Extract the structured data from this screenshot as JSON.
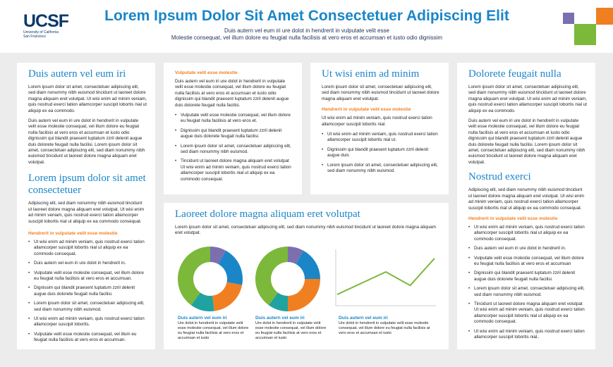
{
  "header": {
    "logo_mark": "UCSF",
    "logo_line1": "University of California",
    "logo_line2": "San Francisco",
    "title": "Lorem Ipsum Dolor Sit Amet Consectetuer Adipiscing Elit",
    "subtitle1": "Duis autern vel eum iri ure dolot in hendrerit in vulputate velit esse",
    "subtitle2": "Molestie consequat, vel illum dolore eu feugiat nulla facilisis at vero eros et accumsan et iusto odio dignissim"
  },
  "colors": {
    "accent_blue": "#1a86c8",
    "accent_orange": "#f07f22",
    "green": "#7cb83a",
    "purple": "#7b6fb0",
    "teal": "#1fa3a0"
  },
  "col1": {
    "heading": "Duis autern vel eum iri",
    "p1": "Lorem ipsum dolor sit amet, consectetuer adipiscing elit, sed diam nonummy nibh euismod tincidunt ut laoreet dolore magna aliquam eret volutpat. Ut wisi enim ad minim veniam, quis nostrud exerci tation allamcorper suscipit lobortis nial ut aliquip ex ea commodo.",
    "p2": "Duis autern vel eum iri ure dolot in hendrerit in vulputate velit esse molestie consequat, vel illum dolore eu feugiat nulla facilisis at vero eros et accumsan et iusto odio dignissim qui blandit praesent luptatum zzril delenit augue duis dolorete feugait nulla facilisi. Lorem ipsum dolor sit amet, consectetuer adipiscing elit, sed diam nonummy nibh euismod tincidunt ut laoreet dolore magna aliquam eret volutpat.",
    "heading2": "Lorem ipsum dolor sit amet consectetuer",
    "p3": "Adipiscing elit, sed diam nonummy nibh euismod tincidunt ut laoreet dolore magna aliquam eret volutpat. Ut wisi enim ad minim veniam, quis nostrud exerci tation allamcorper suscipit lobortis nial ut aliquip ex ea commodo consequat.",
    "sub": "Hendrerit in vulputate velit esse molestie",
    "bullets": [
      "Ut wisi enim ad minim veniam, quis nostrud exerci tation allamcorper suscipit lobortis nial ut aliquip ex ea commodo consequat.",
      "Duis autern vel eum iri ure dolot in hendrerit in.",
      "Vulputate velit esse molestie consequat, vel illum dolore eu feugiat nulla facilisis at vero eros et accumsan.",
      "Dignissim qui blandit praesent luptatum zzril delenit augue duis dolorete feugait nulla facilisi.",
      "Lorem ipsum dolor sit amet, consectetuer adipiscing elit, sed diam nonummy nibh euismod.",
      "Ut wisi enim ad minim veniam, quis nostrud exerci tation allamcorper suscipit lobortis.",
      "Vulputate velit esse molestie consequat, vel illum eu feugiat nulla facilisis at vero eros et accumsan."
    ]
  },
  "col2": {
    "sub": "Vulputate velit esse molestie",
    "p1": "Duis autern vel eum iri ure dolot in hendrerit in vulputate velit esse molestie consequat, vel illum dolore eu feugiat nulla facilisis at vero eros et accumsan et iusto odio dignissim qui blandit praesent luptatum zzril delenit augue duis dolorete feugait nulla facilisi.",
    "bullets": [
      "Vulputate velit esse molestie consequat, vel illum dolore eu feugiat nulla facilisis at vero eros et.",
      "Dignissim qui blandit praesent luptatum zzril delenit augue duis dolorete feugait nulla facilisi.",
      "Lorem ipsum dolor sit amet, consectetuer adipiscing elit, sed diam nonummy nibh euismod.",
      "Tincidunt ut laoreet dolore magna aliquam eret volutpat Ut wisi enim ad minim veniam, quis nostrud exerci tation allamcorper suscipit lobortis nial ut aliquip ex ea commodo consequat."
    ]
  },
  "col3": {
    "heading": "Ut wisi enim ad minim",
    "p1": "Lorem ipsum dolor sit amet, consectetuer adipiscing elit, sed diam nonummy nibh euismod tincidunt ut laoreet dolore magna aliquam eret volutpat.",
    "sub": "Hendrerit in vulputate velit esse molestie",
    "p2": "Ut wisi enim ad minim veniam, quis nostrud exerci tation allamcorper suscipit lobortis nial.",
    "bullets": [
      "Ut wisi enim ad minim veniam, quis nostrud exerci tation allamcorper suscipit lobortis nial ut.",
      "Dignissim qui blandit praesent luptatum zzril delenit augue duis",
      "Lorem ipsum dolor sit amet, consectetuer adipiscing elit, sed diam nonummy nibh euismod."
    ]
  },
  "col4": {
    "heading": "Dolorete feugait nulla",
    "p1": "Lorem ipsum dolor sit amet, consectetuer adipiscing elit, sed diam nonummy nibh euismod tincidunt ut laoreet dolore magna aliquam eret volutpat. Ut wisi enim ad minim veniam, quis nostrud exerci tation allamcorper suscipit lobortis nial ut aliquip ex ea commodo.",
    "p2": "Duis autern vel eum iri ure dolot in hendrerit in vulputate velit esse molestie consequat, vel illum dolore eu feugiat nulla facilisis at vero eros et accumsan et iusto odio dignissim qui blandit praesent luptatum zzril delenit augue duis dolorete feugait nulla facilisi. Lorem ipsum dolor sit amet, consectetuer adipiscing elit, sed diam nonummy nibh euismod tincidunt ut laoreet dolore magna aliquam eret volutpat.",
    "heading2": "Nostrud exerci",
    "p3": "Adipiscing elit, sed diam nonummy nibh euismod tincidunt ut laoreet dolore magna aliquam eret volutpat. Ut wisi enim ad minim veniam, quis nostrud exerci tation allamcorper suscipit lobortis nial ut aliquip ex ea commodo consequat.",
    "sub": "Hendrerit in vulputate velit esse molestie",
    "bullets": [
      "Ut wisi enim ad minim veniam, quis nostrud exerci tation allamcorper suscipit lobortis nial ut aliquip ex ea commodo consequat.",
      "Duis autern vel eum iri ure dolot in hendrerit in.",
      "Vulputate velit esse molestie consequat, vel illum dolore eu feugiat nulla facilisis at vero eros et accumsan",
      "Dignissim qui blandit praesent luptatum zzril delenit augue duis dolorete feugait nulla facilisi.",
      "Lorem ipsum dolor sit amet, consectetuer adipiscing elit, sed diam nonummy nibh euismod.",
      "Tincidunt ut laoreet dolore magna aliquam eret volutpat Ut wisi enim ad minim veniam, quis nostrud exerci tation allamcorper suscipit lobortis nial ut aliquip ex ea commodo consequat.",
      "Ut wisi enim ad minim veniam, quis nostrud exerci tation allamcorper suscipit lobortis nial.."
    ]
  },
  "middle": {
    "heading": "Laoreet dolore magna aliquam eret volutpat",
    "p1": "Lorem ipsum dolor sit amet, consectetuer adipiscing elit, sed diam nonummy nibh euismod tincidunt ut laoreet dolore magna aliquam eret volutpat.",
    "captions": [
      {
        "h": "Duis autern vel eum iri",
        "t": "Ure dolot in hendrerit in vulputate velit esse molestie consequat, vel illum dolore eu feugiat nulla facilisis at vero eros et accumsan et iusto"
      },
      {
        "h": "Duis autern vel eum iri",
        "t": "Ure dolot in hendrerit in vulputate velit esse molestie consequat, vel illum dolore eu feugiat nulla facilisis at vero eros et accumsan et iusto"
      },
      {
        "h": "Duis autern vel eum iri",
        "t": "Ure dolot in hendrerit in vulputate velit esse molestie consequat, vel illum dolore eu feugiat nulla facilisis at vero eros et accumsan et iusto"
      }
    ]
  },
  "chart_data": [
    {
      "type": "pie",
      "title": "",
      "slices": [
        {
          "value": 8,
          "color": "#7b6fb0"
        },
        {
          "value": 20,
          "color": "#1a86c8"
        },
        {
          "value": 20,
          "color": "#f07f22"
        },
        {
          "value": 12,
          "color": "#1fa3a0"
        },
        {
          "value": 40,
          "color": "#7cb83a"
        }
      ]
    },
    {
      "type": "pie",
      "title": "",
      "slices": [
        {
          "value": 8,
          "color": "#7b6fb0"
        },
        {
          "value": 17,
          "color": "#1a86c8"
        },
        {
          "value": 25,
          "color": "#f07f22"
        },
        {
          "value": 10,
          "color": "#1fa3a0"
        },
        {
          "value": 40,
          "color": "#7cb83a"
        }
      ]
    },
    {
      "type": "line",
      "title": "",
      "x": [
        0,
        1,
        2,
        3,
        4
      ],
      "series": [
        {
          "values": [
            1,
            2,
            3,
            1.8,
            4.2
          ],
          "color": "#7cb83a"
        }
      ],
      "ylim": [
        0,
        5
      ]
    }
  ]
}
